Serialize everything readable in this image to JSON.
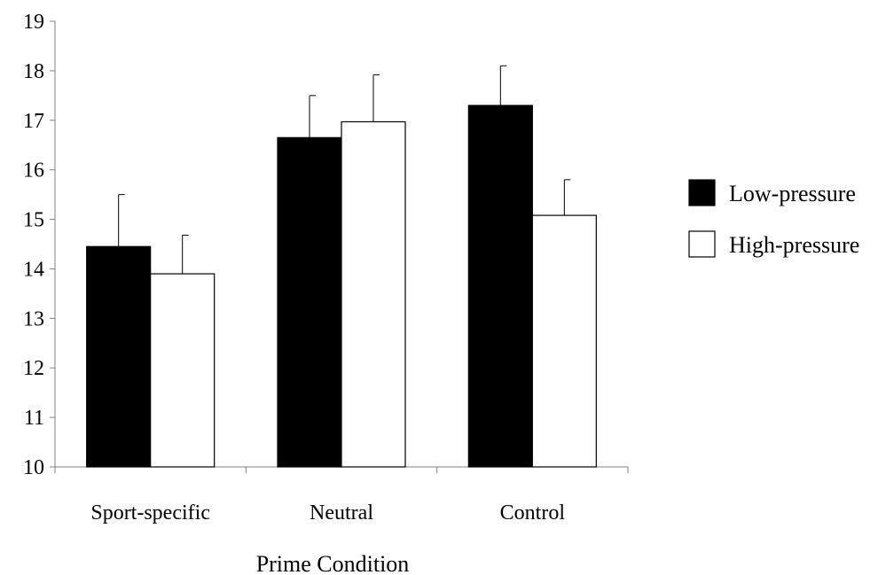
{
  "chart_data": {
    "type": "bar",
    "title": "",
    "xlabel": "Prime Condition",
    "ylabel": "",
    "ylim": [
      10,
      19
    ],
    "yticks": [
      10,
      11,
      12,
      13,
      14,
      15,
      16,
      17,
      18,
      19
    ],
    "categories": [
      "Sport-specific",
      "Neutral",
      "Control"
    ],
    "series": [
      {
        "name": "Low-pressure",
        "color": "#000000",
        "values": [
          14.45,
          16.65,
          17.3
        ],
        "error": [
          1.05,
          0.85,
          0.8
        ]
      },
      {
        "name": "High-pressure",
        "color": "#ffffff",
        "values": [
          13.9,
          16.97,
          15.08
        ],
        "error": [
          0.78,
          0.95,
          0.72
        ]
      }
    ],
    "error_bars": "upper",
    "grid": false,
    "legend": "right"
  }
}
